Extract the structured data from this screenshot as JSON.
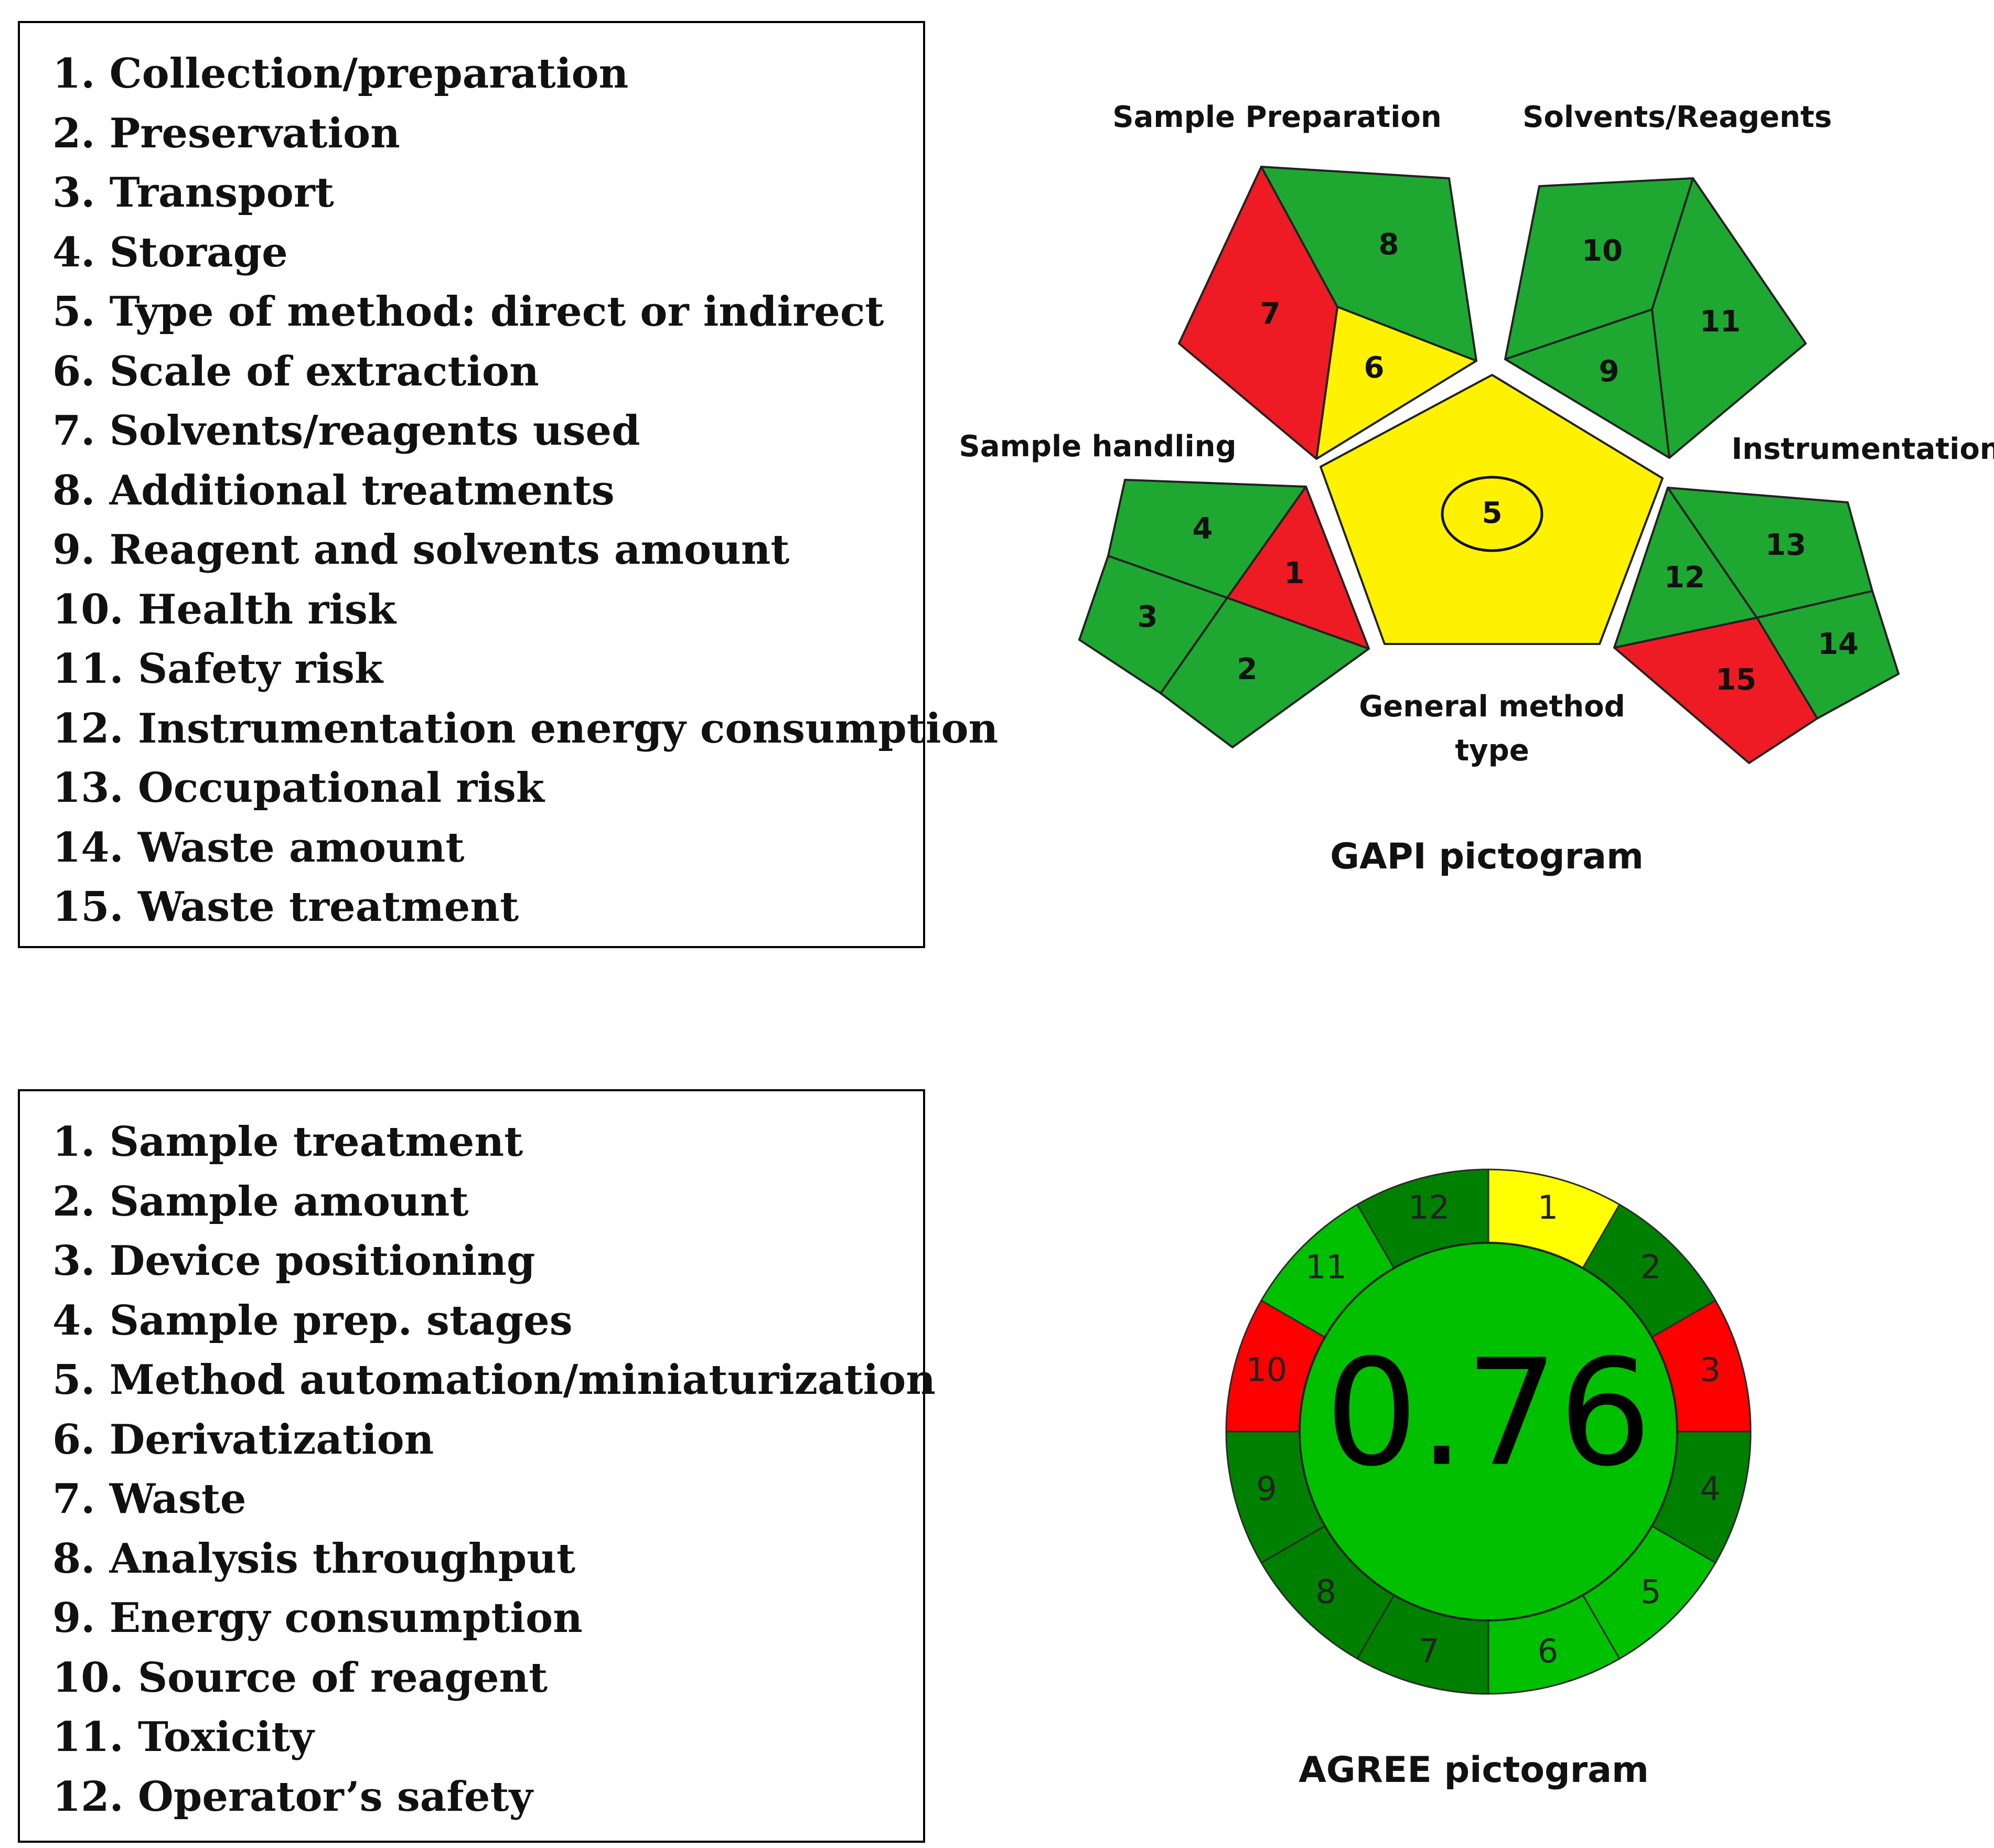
{
  "gapi_legend": {
    "items": [
      "1. Collection/preparation",
      "2. Preservation",
      "3. Transport",
      "4. Storage",
      "5. Type of method: direct or indirect",
      "6. Scale of extraction",
      "7. Solvents/reagents used",
      "8. Additional treatments",
      "9. Reagent and solvents amount",
      "10. Health risk",
      "11. Safety risk",
      "12. Instrumentation energy consumption",
      "13. Occupational risk",
      "14. Waste amount",
      "15. Waste treatment"
    ]
  },
  "agree_legend": {
    "items": [
      "1. Sample treatment",
      "2. Sample amount",
      "3. Device positioning",
      "4. Sample prep. stages",
      "5. Method automation/miniaturization",
      "6. Derivatization",
      "7. Waste",
      "8. Analysis throughput",
      "9. Energy consumption",
      "10. Source of reagent",
      "11. Toxicity",
      "12. Operator’s safety"
    ]
  },
  "colors": {
    "green": "#1ea832",
    "red": "#ee1b24",
    "yellow": "#fff200",
    "agree_bright_green": "#00c000",
    "agree_dark_green": "#008000",
    "agree_red": "#ff0000",
    "agree_yellow": "#ffff00"
  },
  "gapi": {
    "title": "GAPI pictogram",
    "group_labels": {
      "sample_preparation": "Sample Preparation",
      "solvents_reagents": "Solvents/Reagents",
      "sample_handling": "Sample handling",
      "instrumentation": "Instrumentation",
      "general_method_line1": "General method",
      "general_method_line2": "type"
    },
    "fields": [
      {
        "id": "1",
        "color": "red"
      },
      {
        "id": "2",
        "color": "green"
      },
      {
        "id": "3",
        "color": "green"
      },
      {
        "id": "4",
        "color": "green"
      },
      {
        "id": "5",
        "color": "yellow"
      },
      {
        "id": "6",
        "color": "yellow"
      },
      {
        "id": "7",
        "color": "red"
      },
      {
        "id": "8",
        "color": "green"
      },
      {
        "id": "9",
        "color": "green"
      },
      {
        "id": "10",
        "color": "green"
      },
      {
        "id": "11",
        "color": "green"
      },
      {
        "id": "12",
        "color": "green"
      },
      {
        "id": "13",
        "color": "green"
      },
      {
        "id": "14",
        "color": "green"
      },
      {
        "id": "15",
        "color": "red"
      }
    ]
  },
  "agree": {
    "title": "AGREE pictogram",
    "score": "0.76",
    "center_color": "#00c000",
    "segments": [
      {
        "id": "1",
        "color": "#ffff00"
      },
      {
        "id": "2",
        "color": "#008000"
      },
      {
        "id": "3",
        "color": "#ff0000"
      },
      {
        "id": "4",
        "color": "#008000"
      },
      {
        "id": "5",
        "color": "#00c000"
      },
      {
        "id": "6",
        "color": "#00c000"
      },
      {
        "id": "7",
        "color": "#008000"
      },
      {
        "id": "8",
        "color": "#008000"
      },
      {
        "id": "9",
        "color": "#008000"
      },
      {
        "id": "10",
        "color": "#ff0000"
      },
      {
        "id": "11",
        "color": "#00c000"
      },
      {
        "id": "12",
        "color": "#008000"
      }
    ]
  }
}
